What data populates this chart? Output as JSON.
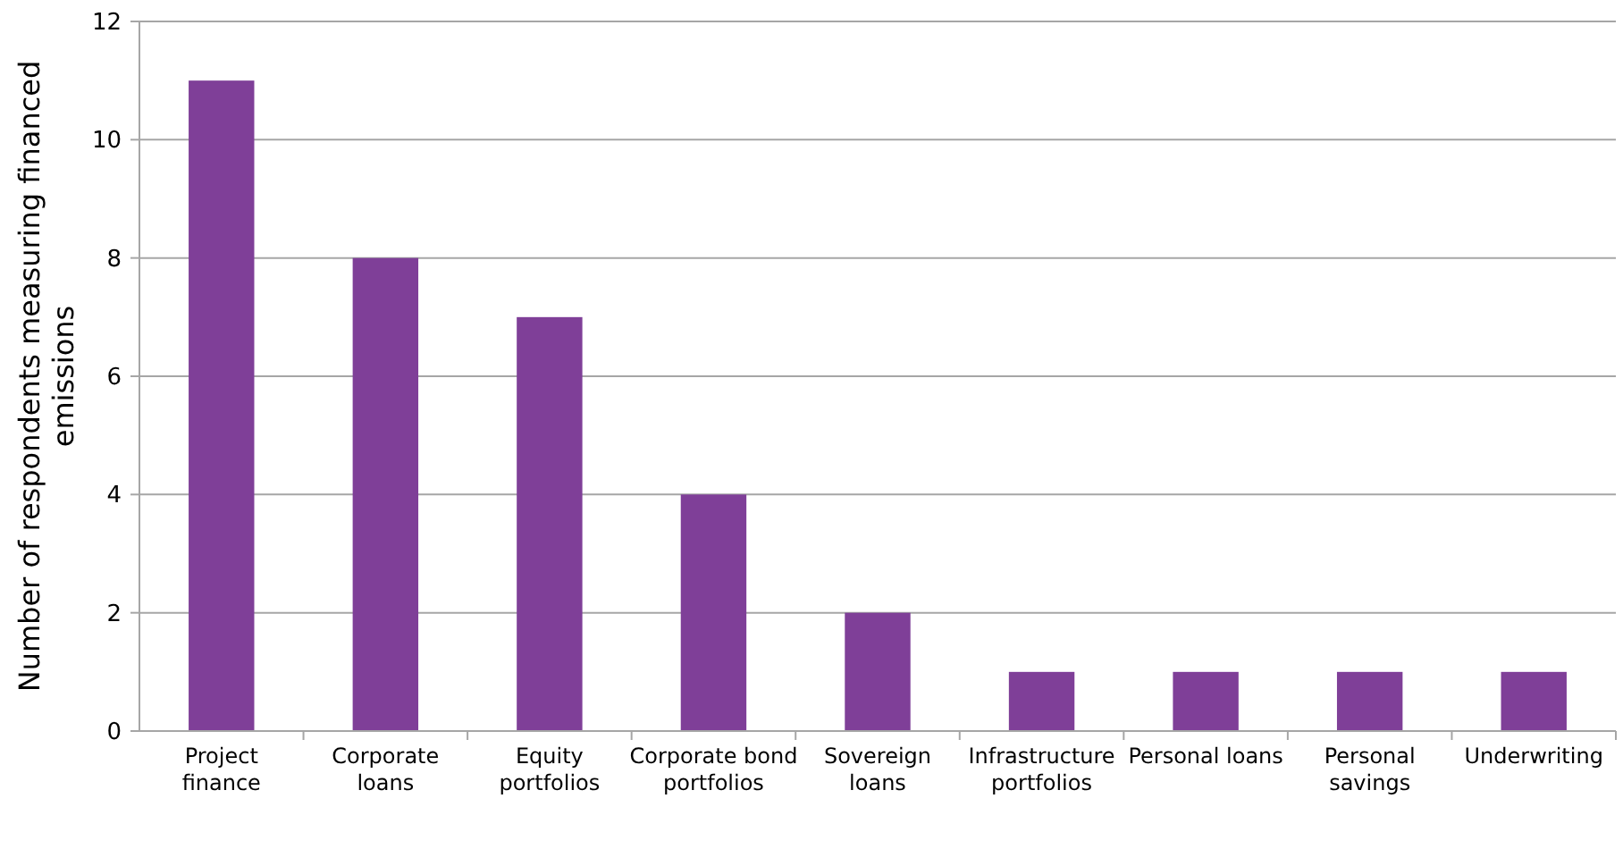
{
  "chart_data": {
    "type": "bar",
    "ylabel": "Number of respondents measuring financed emissions",
    "categories": [
      "Project finance",
      "Corporate loans",
      "Equity portfolios",
      "Corporate bond portfolios",
      "Sovereign loans",
      "Infrastructure portfolios",
      "Personal loans",
      "Personal savings",
      "Underwriting"
    ],
    "values": [
      11,
      8,
      7,
      4,
      2,
      1,
      1,
      1,
      1
    ],
    "color": "#7f3f98",
    "ylim": [
      0,
      12
    ],
    "yticks": [
      0,
      2,
      4,
      6,
      8,
      10,
      12
    ],
    "grid": "y"
  }
}
